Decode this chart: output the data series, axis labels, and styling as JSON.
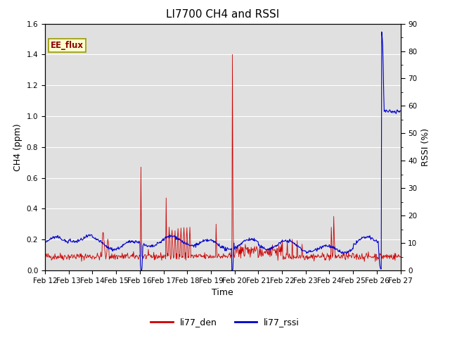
{
  "title": "LI7700 CH4 and RSSI",
  "ylabel_left": "CH4 (ppm)",
  "ylabel_right": "RSSI (%)",
  "xlabel": "Time",
  "ylim_left": [
    0.0,
    1.6
  ],
  "ylim_right": [
    0,
    90
  ],
  "yticks_left": [
    0.0,
    0.2,
    0.4,
    0.6,
    0.8,
    1.0,
    1.2,
    1.4,
    1.6
  ],
  "yticks_right": [
    0,
    10,
    20,
    30,
    40,
    50,
    60,
    70,
    80,
    90
  ],
  "xtick_labels": [
    "Feb 12",
    "Feb 13",
    "Feb 14",
    "Feb 15",
    "Feb 16",
    "Feb 17",
    "Feb 18",
    "Feb 19",
    "Feb 20",
    "Feb 21",
    "Feb 22",
    "Feb 23",
    "Feb 24",
    "Feb 25",
    "Feb 26",
    "Feb 27"
  ],
  "color_ch4": "#cc0000",
  "color_rssi": "#0000cc",
  "legend_label_ch4": "li77_den",
  "legend_label_rssi": "li77_rssi",
  "annotation_text": "EE_flux",
  "background_color": "#e0e0e0",
  "title_fontsize": 11,
  "axis_label_fontsize": 9,
  "tick_fontsize": 7.5,
  "legend_fontsize": 9
}
